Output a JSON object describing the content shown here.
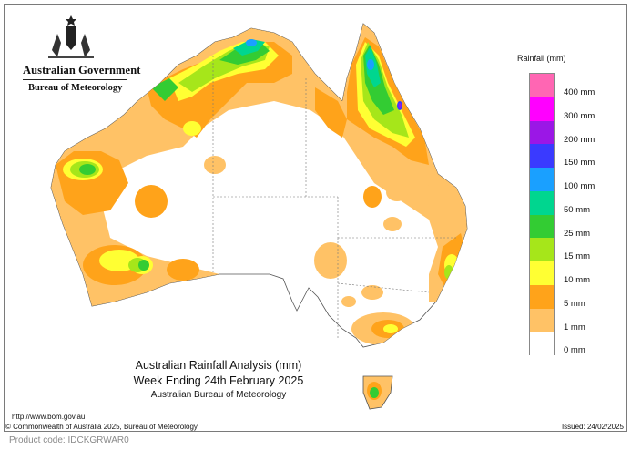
{
  "header": {
    "government": "Australian Government",
    "bureau": "Bureau of Meteorology"
  },
  "legend": {
    "title": "Rainfall (mm)",
    "classes": [
      {
        "label": "400 mm",
        "color": "#ff66b3"
      },
      {
        "label": "300 mm",
        "color": "#ff00ff"
      },
      {
        "label": "200 mm",
        "color": "#9b17e6"
      },
      {
        "label": "150 mm",
        "color": "#3a3aff"
      },
      {
        "label": "100 mm",
        "color": "#1aa0ff"
      },
      {
        "label": "50 mm",
        "color": "#00d68f"
      },
      {
        "label": "25 mm",
        "color": "#33cc33"
      },
      {
        "label": "15 mm",
        "color": "#a6e61a"
      },
      {
        "label": "10 mm",
        "color": "#ffff33"
      },
      {
        "label": "5 mm",
        "color": "#ffa31a"
      },
      {
        "label": "1 mm",
        "color": "#ffc266"
      },
      {
        "label": "0 mm",
        "color": "#ffffff"
      }
    ]
  },
  "title": {
    "line1": "Australian Rainfall Analysis (mm)",
    "line2": "Week Ending 24th February 2025",
    "line3": "Australian Bureau of Meteorology"
  },
  "footer": {
    "url": "http://www.bom.gov.au",
    "copyright": "© Commonwealth of Australia 2025, Bureau of Meteorology",
    "issued": "Issued: 24/02/2025"
  },
  "product_code": "Product code: IDCKGRWAR0"
}
